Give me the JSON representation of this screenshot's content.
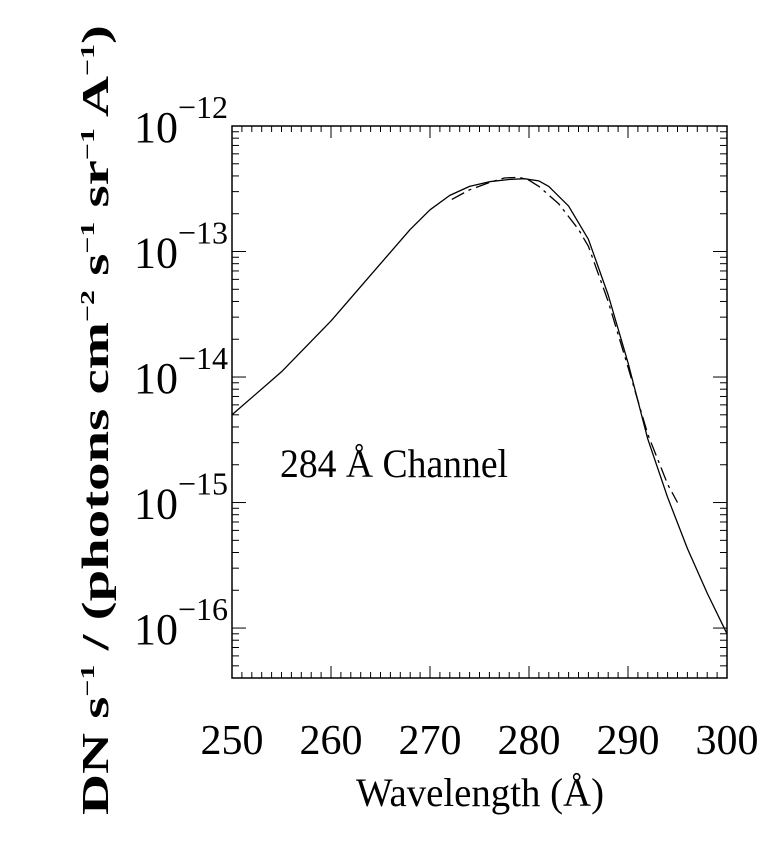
{
  "chart_data": {
    "type": "line",
    "title": "",
    "annotation": "284 Å Channel",
    "xlabel": "Wavelength (Å)",
    "ylabel": {
      "base": "DN s",
      "sup1": "−1",
      "mid": " / (photons cm",
      "sup2": "−2",
      "s": " s",
      "sup3": "−1",
      "sr": " sr",
      "sup4": "−1",
      "A": " A",
      "sup5": "−1",
      "end": ")"
    },
    "xlim": [
      250,
      300
    ],
    "ylim": [
      4e-17,
      1e-12
    ],
    "yscale": "log",
    "xticks": [
      "250",
      "260",
      "270",
      "280",
      "290",
      "300"
    ],
    "yticks": [
      {
        "base": "10",
        "exp": "−12",
        "value": 1e-12
      },
      {
        "base": "10",
        "exp": "−13",
        "value": 1e-13
      },
      {
        "base": "10",
        "exp": "−14",
        "value": 1e-14
      },
      {
        "base": "10",
        "exp": "−15",
        "value": 1e-15
      },
      {
        "base": "10",
        "exp": "−16",
        "value": 1e-16
      }
    ],
    "series": [
      {
        "style": "solid",
        "x": [
          250,
          255,
          260,
          265,
          268,
          270,
          272,
          274,
          276,
          278,
          279.5,
          281,
          282,
          284,
          286,
          288,
          290,
          292,
          294,
          296,
          298,
          300
        ],
        "y": [
          5e-15,
          1.1e-14,
          2.8e-14,
          8e-14,
          1.5e-13,
          2.15e-13,
          2.8e-13,
          3.3e-13,
          3.6e-13,
          3.75e-13,
          3.8e-13,
          3.65e-13,
          3.3e-13,
          2.3e-13,
          1.25e-13,
          4.5e-14,
          1.3e-14,
          3.2e-15,
          1.1e-15,
          4.3e-16,
          1.9e-16,
          9e-17
        ]
      },
      {
        "style": "dashdot",
        "x": [
          272.2,
          274,
          276,
          277.5,
          279,
          280,
          281,
          283,
          285,
          286,
          288,
          290,
          292,
          294,
          295
        ],
        "y": [
          2.6e-13,
          3.1e-13,
          3.55e-13,
          3.85e-13,
          3.9e-13,
          3.7e-13,
          3.3e-13,
          2.4e-13,
          1.5e-13,
          1.1e-13,
          4e-14,
          1.2e-14,
          3.5e-15,
          1.4e-15,
          1e-15
        ]
      }
    ]
  }
}
